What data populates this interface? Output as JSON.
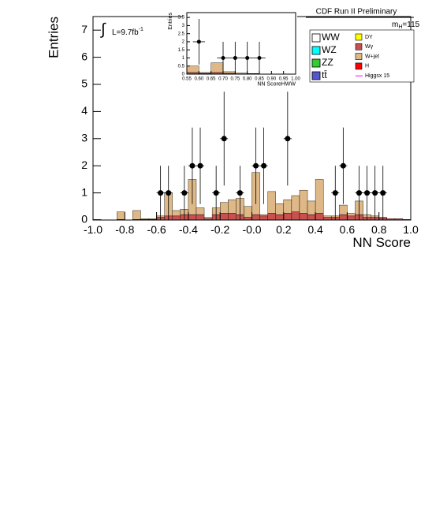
{
  "chart_data": [
    {
      "type": "histogram",
      "x_label": "NN Score",
      "y_label": "Entries",
      "bins": [
        -1,
        -0.95,
        -0.9,
        -0.85,
        -0.8,
        -0.75,
        -0.7,
        -0.65,
        -0.6,
        -0.55,
        -0.5,
        -0.45,
        -0.4,
        -0.35,
        -0.3,
        -0.25,
        -0.2,
        -0.15,
        -0.1,
        -0.05,
        0,
        0.05,
        0.1,
        0.15,
        0.2,
        0.25,
        0.3,
        0.35,
        0.4,
        0.45,
        0.5,
        0.55,
        0.6,
        0.65,
        0.7,
        0.75,
        0.8,
        0.85,
        0.9,
        0.95,
        1
      ],
      "series": [
        {
          "color": "#c8504f",
          "values": [
            0.02,
            0,
            0,
            0.02,
            0,
            0.02,
            0.02,
            0.02,
            0.1,
            0.15,
            0.15,
            0.2,
            0.2,
            0.2,
            0.05,
            0.2,
            0.25,
            0.25,
            0.2,
            0.1,
            0.2,
            0.15,
            0.25,
            0.2,
            0.25,
            0.3,
            0.25,
            0.2,
            0.25,
            0.1,
            0.1,
            0.2,
            0.15,
            0.2,
            0.1,
            0.1,
            0.08,
            0.05,
            0.05,
            0.02
          ]
        },
        {
          "color": "#deb887",
          "values": [
            0,
            0,
            0,
            0.28,
            0,
            0.33,
            0.03,
            0.03,
            0.05,
            0.85,
            0.2,
            0.2,
            1.3,
            0.25,
            0.05,
            0.25,
            0.4,
            0.5,
            0.6,
            0.4,
            1.55,
            0.05,
            0.8,
            0.4,
            0.5,
            0.6,
            0.85,
            0.5,
            1.25,
            0.05,
            0.05,
            0.35,
            0.1,
            0.5,
            0.1,
            0.05,
            0.02,
            0,
            0,
            0
          ]
        }
      ],
      "points": {
        "x": [
          -0.575,
          -0.525,
          -0.425,
          -0.375,
          -0.325,
          -0.225,
          -0.175,
          -0.075,
          0.025,
          0.075,
          0.225,
          0.525,
          0.575,
          0.675,
          0.725,
          0.775,
          0.825
        ],
        "values": [
          1,
          1,
          1,
          2,
          2,
          1,
          3,
          1,
          2,
          2,
          3,
          1,
          2,
          1,
          1,
          1,
          1
        ],
        "errors": [
          1,
          1,
          1,
          1.41,
          1.41,
          1,
          1.73,
          1,
          1.41,
          1.41,
          1.73,
          1,
          1.41,
          1,
          1,
          1,
          1
        ]
      },
      "xlim": [
        -1,
        1
      ],
      "ylim": [
        0,
        7.5
      ],
      "xticks": [
        {
          "value": -1,
          "label": "-1.0"
        },
        -0.8,
        -0.6,
        -0.4,
        -0.2,
        {
          "value": 0,
          "label": "-0.0"
        },
        0.2,
        0.4,
        0.6,
        0.8,
        {
          "value": 1,
          "label": "1.0"
        }
      ],
      "yticks": [
        0,
        1,
        2,
        3,
        4,
        5,
        6,
        7
      ]
    },
    {
      "type": "histogram",
      "x_label": "NN ScoreHWW",
      "y_label": "Entries",
      "bins": [
        0.55,
        0.6,
        0.65,
        0.7,
        0.75,
        0.8,
        0.85,
        0.9,
        0.95,
        1
      ],
      "series": [
        {
          "color": "#c8504f",
          "values": [
            0.1,
            0.05,
            0.1,
            0.05,
            0.02,
            0.02,
            0,
            0,
            0
          ]
        },
        {
          "color": "#deb887",
          "values": [
            0.4,
            0.05,
            0.6,
            0.1,
            0.05,
            0.02,
            0,
            0,
            0
          ]
        }
      ],
      "points": {
        "x": [
          0.6,
          0.7,
          0.75,
          0.8,
          0.85
        ],
        "values": [
          2,
          1,
          1,
          1,
          1
        ],
        "errors": [
          1.41,
          1,
          1,
          1,
          1
        ]
      },
      "xlim": [
        0.55,
        1
      ],
      "ylim": [
        0,
        3.8
      ],
      "xticks": [
        0.55,
        {
          "value": 0.6,
          "label": "0.60"
        },
        0.65,
        {
          "value": 0.7,
          "label": "0.70"
        },
        0.75,
        {
          "value": 0.8,
          "label": "0.80"
        },
        0.85,
        {
          "value": 0.9,
          "label": "0.90"
        },
        0.95,
        {
          "value": 1,
          "label": "1.00"
        }
      ],
      "yticks": [
        0,
        0.5,
        1,
        1.5,
        2,
        2.5,
        3,
        3.5
      ]
    }
  ],
  "annotations": {
    "experiment": "CDF Run II Preliminary",
    "mass": [
      "m",
      "H",
      "=115"
    ],
    "lumi": [
      "∫",
      "L=9.7fb",
      "-1"
    ]
  },
  "legend": [
    {
      "name": "WW",
      "color": "#ffffff"
    },
    {
      "name": "WZ",
      "color": "#00ffff"
    },
    {
      "name": "ZZ",
      "color": "#33cc33"
    },
    {
      "name": "tt̄",
      "color": "#5555cc"
    },
    {
      "name": "DY",
      "color": "#ffff00"
    },
    {
      "name": "Wγ",
      "color": "#c8504f"
    },
    {
      "name": "W+jet",
      "color": "#deb887"
    },
    {
      "name": "H",
      "color": "#ff0000"
    },
    {
      "name": "Higgsx 15",
      "color": "#ff00ff"
    }
  ]
}
